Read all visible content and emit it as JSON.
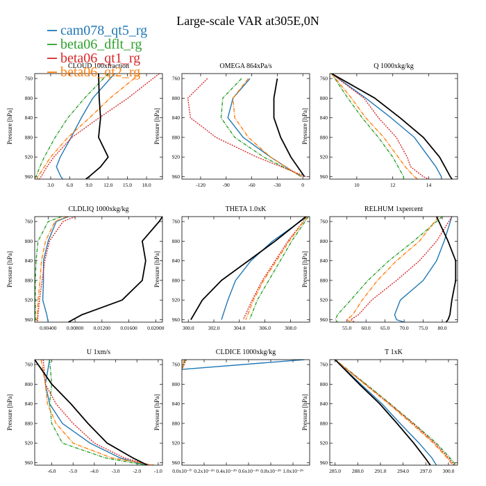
{
  "figure_title": "Large-scale VAR at305E,0N",
  "legend": [
    {
      "label": "cam078_qt5_rg",
      "color": "#1f77b4"
    },
    {
      "label": "beta06_dflt_rg",
      "color": "#2ca02c"
    },
    {
      "label": "beta06_qt1_rg",
      "color": "#d62728"
    },
    {
      "label": "beta06_qt2_rg",
      "color": "#ff7f0e"
    }
  ],
  "colors": {
    "cam078_qt5_rg": "#1f77b4",
    "beta06_dflt_rg": "#2ca02c",
    "beta06_qt1_rg": "#d62728",
    "beta06_qt2_rg": "#ff7f0e",
    "obs": "#000000"
  },
  "chart_data": [
    {
      "type": "line",
      "title": "CLOUD 100xfraction",
      "ylabel": "Pressure [hPa]",
      "xlim": [
        0.5,
        20.5
      ],
      "ylim": [
        965,
        750
      ],
      "y_inverted": true,
      "xticks": [
        "3.0",
        "6.0",
        "9.0",
        "12.0",
        "15.0",
        "18.0"
      ],
      "xtick_values": [
        3,
        6,
        9,
        12,
        15,
        18
      ],
      "yticks": [
        760,
        800,
        840,
        880,
        920,
        960
      ],
      "p": [
        750,
        800,
        840,
        880,
        920,
        940,
        960,
        965
      ],
      "series": [
        {
          "key": "cam078_qt5_rg",
          "x": [
            13,
            9.6,
            7.8,
            6.2,
            4.5,
            3.9,
            4.6,
            4.9
          ]
        },
        {
          "key": "beta06_dflt_rg",
          "x": [
            12,
            8.3,
            5.7,
            3.7,
            2.0,
            1.3,
            0.7,
            0.6
          ]
        },
        {
          "key": "beta06_qt1_rg",
          "x": [
            20,
            15.1,
            10.6,
            6.3,
            3.5,
            2.4,
            1.5,
            1.2
          ]
        },
        {
          "key": "beta06_qt2_rg",
          "x": [
            17,
            12.3,
            9.1,
            5.7,
            3.0,
            2.0,
            1.0,
            0.9
          ]
        },
        {
          "key": "obs",
          "x": [
            10.5,
            10.6,
            10.8,
            10.5,
            12.0,
            10.8,
            9.0,
            8.5
          ]
        }
      ]
    },
    {
      "type": "line",
      "title": "OMEGA 864xPa/s",
      "ylabel": "Pressure [hPa]",
      "xlim": [
        -142,
        8
      ],
      "ylim": [
        965,
        750
      ],
      "y_inverted": true,
      "xticks": [
        "-120",
        "-90",
        "-60",
        "-30",
        "0"
      ],
      "xtick_values": [
        -120,
        -90,
        -60,
        -30,
        0
      ],
      "yticks": [
        760,
        800,
        840,
        880,
        920,
        960
      ],
      "p": [
        760,
        800,
        840,
        880,
        920,
        960
      ],
      "series": [
        {
          "key": "cam078_qt5_rg",
          "x": [
            -62,
            -82,
            -88,
            -70,
            -38,
            -2
          ]
        },
        {
          "key": "beta06_dflt_rg",
          "x": [
            -72,
            -94,
            -96,
            -80,
            -46,
            0
          ]
        },
        {
          "key": "beta06_qt1_rg",
          "x": [
            -112,
            -135,
            -132,
            -102,
            -54,
            4
          ]
        },
        {
          "key": "beta06_qt2_rg",
          "x": [
            -64,
            -82,
            -80,
            -64,
            -38,
            -2
          ]
        },
        {
          "key": "obs",
          "x": [
            -30,
            -34,
            -34,
            -26,
            -14,
            2
          ]
        }
      ]
    },
    {
      "type": "line",
      "title": "Q 1000xkg/kg",
      "ylabel": "Pressure [hPa]",
      "xlim": [
        8.5,
        15.6
      ],
      "ylim": [
        965,
        750
      ],
      "y_inverted": true,
      "xticks": [
        "10",
        "12",
        "14"
      ],
      "xtick_values": [
        10,
        12,
        14
      ],
      "yticks": [
        760,
        800,
        840,
        880,
        920,
        960
      ],
      "p": [
        750,
        800,
        840,
        880,
        920,
        940,
        960,
        965
      ],
      "series": [
        {
          "key": "cam078_qt5_rg",
          "x": [
            8.6,
            10.5,
            11.9,
            13.2,
            14.0,
            14.4,
            14.7,
            14.7
          ]
        },
        {
          "key": "beta06_dflt_rg",
          "x": [
            8.6,
            9.5,
            10.3,
            11.2,
            12.0,
            12.3,
            12.6,
            12.6
          ]
        },
        {
          "key": "beta06_qt1_rg",
          "x": [
            8.6,
            10.4,
            11.2,
            12.2,
            12.8,
            13.0,
            13.7,
            14.0
          ]
        },
        {
          "key": "beta06_qt2_rg",
          "x": [
            8.6,
            9.7,
            10.5,
            11.5,
            12.3,
            12.7,
            13.2,
            13.4
          ]
        },
        {
          "key": "obs",
          "x": [
            8.6,
            11.0,
            12.4,
            13.7,
            14.6,
            14.9,
            15.2,
            15.3
          ]
        }
      ]
    },
    {
      "type": "line",
      "title": "CLDLIQ 1000xkg/kg",
      "ylabel": "Pressure [hPa]",
      "xlim": [
        0.002,
        0.021
      ],
      "ylim": [
        965,
        750
      ],
      "y_inverted": true,
      "xticks": [
        "0.00400",
        "0.00800",
        "0.01200",
        "0.01600",
        "0.02000"
      ],
      "xtick_values": [
        0.004,
        0.008,
        0.012,
        0.016,
        0.02
      ],
      "yticks": [
        760,
        800,
        840,
        880,
        920,
        960
      ],
      "p": [
        750,
        760,
        800,
        840,
        880,
        920,
        950,
        965
      ],
      "series": [
        {
          "key": "cam078_qt5_rg",
          "x": [
            0.007,
            0.0052,
            0.004,
            0.0033,
            0.0033,
            0.0032,
            0.0038,
            0.004
          ]
        },
        {
          "key": "beta06_dflt_rg",
          "x": [
            0.006,
            0.004,
            0.0025,
            0.0022,
            0.0021,
            0.0021,
            0.0021,
            0.0021
          ]
        },
        {
          "key": "beta06_qt1_rg",
          "x": [
            0.008,
            0.0062,
            0.0042,
            0.0035,
            0.0031,
            0.0027,
            0.0025,
            0.0024
          ]
        },
        {
          "key": "beta06_qt2_rg",
          "x": [
            0.0068,
            0.005,
            0.0036,
            0.003,
            0.0028,
            0.0025,
            0.0024,
            0.0023
          ]
        },
        {
          "key": "obs",
          "x": [
            0.021,
            0.0205,
            0.018,
            0.0185,
            0.018,
            0.015,
            0.009,
            0.007
          ]
        }
      ]
    },
    {
      "type": "line",
      "title": "THETA 1.0xK",
      "ylabel": "Pressure [hPa]",
      "xlim": [
        299.5,
        309.5
      ],
      "ylim": [
        965,
        750
      ],
      "y_inverted": true,
      "xticks": [
        "300.0",
        "302.0",
        "304.0",
        "306.0",
        "308.0"
      ],
      "xtick_values": [
        300,
        302,
        304,
        306,
        308
      ],
      "yticks": [
        760,
        800,
        840,
        880,
        920,
        960
      ],
      "p": [
        750,
        800,
        840,
        880,
        920,
        960
      ],
      "series": [
        {
          "key": "cam078_qt5_rg",
          "x": [
            309.3,
            306.6,
            304.9,
            303.7,
            303.1,
            302.6
          ]
        },
        {
          "key": "beta06_dflt_rg",
          "x": [
            309.4,
            308.1,
            307.2,
            306.3,
            305.4,
            304.8
          ]
        },
        {
          "key": "beta06_qt1_rg",
          "x": [
            309.3,
            307.8,
            306.8,
            305.8,
            305.0,
            304.3
          ]
        },
        {
          "key": "beta06_qt2_rg",
          "x": [
            309.3,
            307.9,
            306.9,
            305.9,
            305.1,
            304.5
          ]
        },
        {
          "key": "obs",
          "x": [
            309.2,
            306.8,
            304.7,
            302.6,
            301.1,
            300.2
          ]
        }
      ]
    },
    {
      "type": "line",
      "title": "RELHUM 1xpercent",
      "ylabel": "Pressure [hPa]",
      "xlim": [
        50.5,
        84
      ],
      "ylim": [
        965,
        750
      ],
      "y_inverted": true,
      "xticks": [
        "55.0",
        "60.0",
        "65.0",
        "70.0",
        "75.0",
        "80.0"
      ],
      "xtick_values": [
        55,
        60,
        65,
        70,
        75,
        80
      ],
      "yticks": [
        760,
        800,
        840,
        880,
        920,
        960
      ],
      "p": [
        750,
        800,
        840,
        880,
        920,
        950,
        960,
        965
      ],
      "series": [
        {
          "key": "cam078_qt5_rg",
          "x": [
            82.5,
            80.5,
            78.5,
            75.0,
            69.0,
            67.5,
            68.0,
            70.0
          ]
        },
        {
          "key": "beta06_dflt_rg",
          "x": [
            80.0,
            72.5,
            66.0,
            60.5,
            56.0,
            52.5,
            52.0,
            52.5
          ]
        },
        {
          "key": "beta06_qt1_rg",
          "x": [
            82.5,
            78.5,
            74.0,
            68.0,
            61.5,
            58.0,
            56.0,
            57.0
          ]
        },
        {
          "key": "beta06_qt2_rg",
          "x": [
            79.0,
            74.0,
            68.0,
            63.0,
            59.0,
            56.5,
            55.0,
            56.0
          ]
        },
        {
          "key": "obs",
          "x": [
            78.5,
            81.5,
            83.5,
            83.5,
            82.5,
            82.0,
            81.5,
            81.0
          ]
        }
      ]
    },
    {
      "type": "line",
      "title": "U 1xm/s",
      "ylabel": "Pressure [hPa]",
      "xlim": [
        -6.8,
        -0.8
      ],
      "ylim": [
        965,
        750
      ],
      "y_inverted": true,
      "xticks": [
        "-6.0",
        "-5.0",
        "-4.0",
        "-3.0",
        "-2.0",
        "-1.0"
      ],
      "xtick_values": [
        -6,
        -5,
        -4,
        -3,
        -2,
        -1
      ],
      "yticks": [
        760,
        800,
        840,
        880,
        920,
        960
      ],
      "p": [
        750,
        800,
        840,
        880,
        920,
        950,
        965
      ],
      "series": [
        {
          "key": "cam078_qt5_rg",
          "x": [
            -6.1,
            -6.3,
            -6.1,
            -5.5,
            -4.2,
            -2.8,
            -1.6
          ]
        },
        {
          "key": "beta06_dflt_rg",
          "x": [
            -6.1,
            -6.0,
            -6.1,
            -6.0,
            -5.5,
            -3.5,
            -1.6
          ]
        },
        {
          "key": "beta06_qt1_rg",
          "x": [
            -6.4,
            -6.3,
            -5.8,
            -5.0,
            -4.0,
            -2.6,
            -1.4
          ]
        },
        {
          "key": "beta06_qt2_rg",
          "x": [
            -6.5,
            -6.3,
            -6.2,
            -5.8,
            -5.0,
            -3.2,
            -1.2
          ]
        },
        {
          "key": "obs",
          "x": [
            -6.8,
            -6.0,
            -5.1,
            -4.3,
            -3.4,
            -2.2,
            -1.5
          ]
        }
      ]
    },
    {
      "type": "line",
      "title": "CLDICE 1000xkg/kg",
      "ylabel": "Pressure [hPa]",
      "xlim": [
        0,
        1.15e-29
      ],
      "ylim": [
        965,
        750
      ],
      "y_inverted": true,
      "xticks": [
        "0.0x10⁻⁰",
        "0.2x10⁻²⁹",
        "0.4x10⁻²⁹",
        "0.6x10⁻²⁹",
        "0.8x10⁻²⁹",
        "1.0x10⁻²⁹"
      ],
      "xtick_values": [
        0,
        2e-30,
        4e-30,
        6e-30,
        8e-30,
        1e-29
      ],
      "yticks": [
        760,
        800,
        840,
        880,
        920,
        960
      ],
      "p": [
        750,
        770
      ],
      "series": [
        {
          "key": "cam078_qt5_rg",
          "x": [
            1.1e-29,
            0
          ]
        },
        {
          "key": "beta06_dflt_rg",
          "x": [
            3e-31,
            0
          ]
        },
        {
          "key": "beta06_qt1_rg",
          "x": [
            4e-31,
            0
          ]
        },
        {
          "key": "beta06_qt2_rg",
          "x": [
            2e-31,
            0
          ]
        }
      ]
    },
    {
      "type": "line",
      "title": "T 1xK",
      "ylabel": "Pressure [hPa]",
      "xlim": [
        284.3,
        301.2
      ],
      "ylim": [
        965,
        750
      ],
      "y_inverted": true,
      "xticks": [
        "285.0",
        "288.0",
        "291.0",
        "294.0",
        "297.0",
        "300.0"
      ],
      "xtick_values": [
        285,
        288,
        291,
        294,
        297,
        300
      ],
      "yticks": [
        760,
        800,
        840,
        880,
        920,
        960
      ],
      "p": [
        750,
        800,
        840,
        880,
        920,
        950,
        965
      ],
      "series": [
        {
          "key": "cam078_qt5_rg",
          "x": [
            285.0,
            288.4,
            291.2,
            293.6,
            296.1,
            297.8,
            298.4
          ]
        },
        {
          "key": "beta06_dflt_rg",
          "x": [
            285.0,
            289.1,
            292.3,
            295.4,
            298.4,
            300.2,
            301.0
          ]
        },
        {
          "key": "beta06_qt1_rg",
          "x": [
            285.0,
            289.0,
            292.2,
            295.3,
            298.2,
            300.0,
            300.8
          ]
        },
        {
          "key": "beta06_qt2_rg",
          "x": [
            285.0,
            288.9,
            292.1,
            295.1,
            298.0,
            299.8,
            300.6
          ]
        },
        {
          "key": "obs",
          "x": [
            285.0,
            288.2,
            290.9,
            293.2,
            295.4,
            296.9,
            297.6
          ]
        }
      ]
    }
  ]
}
